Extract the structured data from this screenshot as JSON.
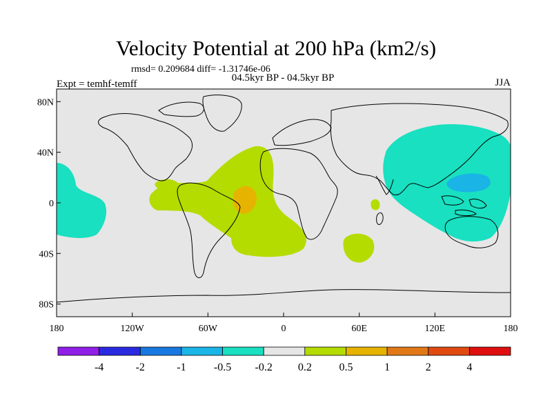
{
  "title": "Velocity Potential at 200 hPa (km2/s)",
  "stats": "rmsd= 0.209684 diff= -1.31746e-06",
  "left_label": "Expt = temhf-temff",
  "center_label": "04.5kyr BP - 04.5kyr BP",
  "right_label": "JJA",
  "colors": {
    "land_bg": "#e6e6e6",
    "coast": "#000000"
  },
  "axes": {
    "x_ticks": [
      {
        "value": -180,
        "label": "180"
      },
      {
        "value": -120,
        "label": "120W"
      },
      {
        "value": -60,
        "label": "60W"
      },
      {
        "value": 0,
        "label": "0"
      },
      {
        "value": 60,
        "label": "60E"
      },
      {
        "value": 120,
        "label": "120E"
      },
      {
        "value": 180,
        "label": "180"
      }
    ],
    "y_ticks": [
      {
        "value": 80,
        "label": "80N"
      },
      {
        "value": 40,
        "label": "40N"
      },
      {
        "value": 0,
        "label": "0"
      },
      {
        "value": -40,
        "label": "40S"
      },
      {
        "value": -80,
        "label": "80S"
      }
    ],
    "lon_range": [
      -180,
      180
    ],
    "lat_range": [
      -90,
      90
    ]
  },
  "colorbar": {
    "colors": [
      "#8f1ee6",
      "#2a2ae0",
      "#1878e0",
      "#1ab4e6",
      "#18e0c0",
      "#e6e6e6",
      "#b4dc00",
      "#e6b400",
      "#e07818",
      "#e04a10",
      "#e00f0f"
    ],
    "labels": [
      "-4",
      "-2",
      "-1",
      "-0.5",
      "-0.2",
      "0.2",
      "0.5",
      "1",
      "2",
      "4"
    ]
  }
}
